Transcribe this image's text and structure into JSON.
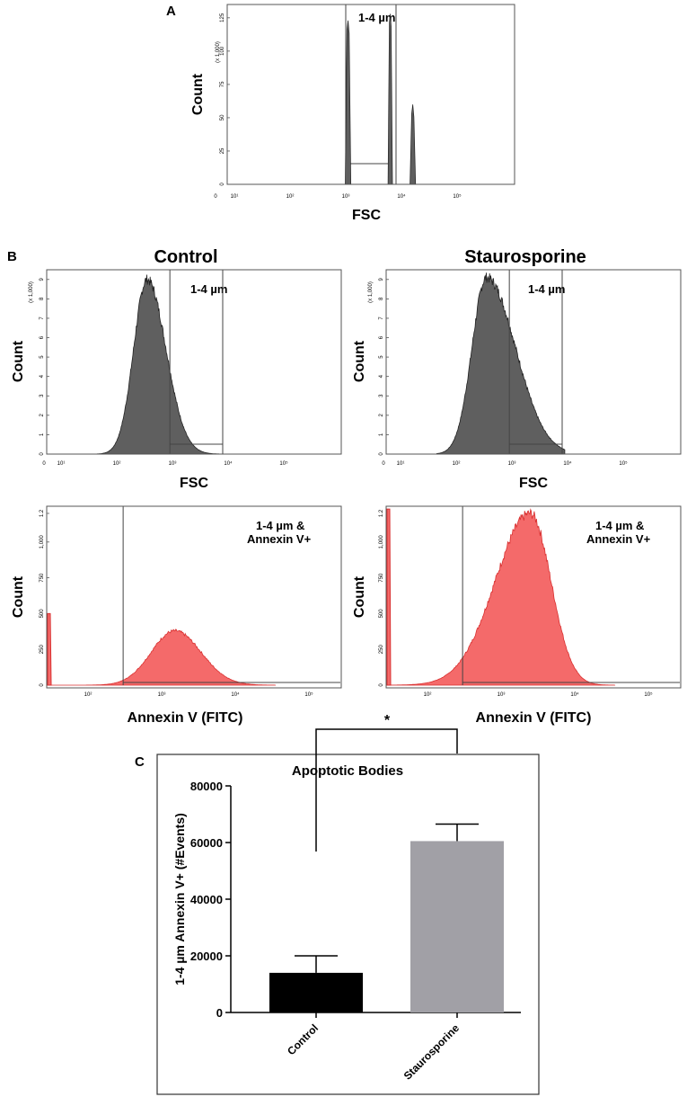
{
  "panel_labels": {
    "a": "A",
    "b": "B",
    "c": "C"
  },
  "column_titles": {
    "control": "Control",
    "staurosporine": "Staurosporine"
  },
  "colors": {
    "gray_fill": "#5f5f5f",
    "red_fill": "#f46a6a",
    "red_line": "#d93030",
    "bar_control": "#000000",
    "bar_stauro": "#a1a0a6"
  },
  "axes": {
    "count": "Count",
    "fsc": "FSC",
    "annexin": "Annexin V (FITC)"
  },
  "units": {
    "scale": "(x 1,000)"
  },
  "gates": {
    "size": "1-4 µm",
    "size_annexin_1": "1-4 µm &",
    "size_annexin_2": "Annexin V+"
  },
  "ticks": {
    "log_fsc": [
      "0",
      "10¹",
      "10²",
      "10³",
      "10⁴",
      "10⁵"
    ],
    "log_annexin": [
      "10²",
      "10³",
      "10⁴",
      "10⁵"
    ],
    "count_a": [
      "0",
      "25",
      "50",
      "75",
      "100",
      "125"
    ],
    "count_b_fsc": [
      "0",
      "1",
      "2",
      "3",
      "4",
      "5",
      "6",
      "7",
      "8",
      "9"
    ],
    "count_b_ann": [
      "0",
      "250",
      "500",
      "750",
      "1,000",
      "1.2"
    ]
  },
  "chart_data": [
    {
      "id": "A",
      "type": "area",
      "title": "",
      "xlabel": "FSC",
      "ylabel": "Count",
      "x_scale": "log",
      "ylim": [
        0,
        135
      ],
      "y_units": "x 1,000",
      "gates": [
        {
          "label": "1-4 µm",
          "from": 1000,
          "to": 8000
        }
      ],
      "peaks": [
        {
          "x": 1100,
          "height": 123,
          "width": 0.05
        },
        {
          "x": 6300,
          "height": 128,
          "width": 0.04
        },
        {
          "x": 16000,
          "height": 60,
          "width": 0.05
        }
      ]
    },
    {
      "id": "B-control-FSC",
      "type": "area",
      "title": "Control",
      "xlabel": "FSC",
      "ylabel": "Count",
      "x_scale": "log",
      "ylim": [
        0,
        9.5
      ],
      "y_units": "x 1,000",
      "gates": [
        {
          "label": "1-4 µm",
          "from": 900,
          "to": 8000
        }
      ],
      "distribution": {
        "peak_x": 350,
        "peak_height": 9.0,
        "sigma_left": 0.24,
        "sigma_right": 0.34
      }
    },
    {
      "id": "B-staurosporine-FSC",
      "type": "area",
      "title": "Staurosporine",
      "xlabel": "FSC",
      "ylabel": "Count",
      "x_scale": "log",
      "ylim": [
        0,
        9.5
      ],
      "y_units": "x 1,000",
      "gates": [
        {
          "label": "1-4 µm",
          "from": 900,
          "to": 8000
        }
      ],
      "distribution": {
        "peak_x": 350,
        "peak_height": 9.1,
        "sigma_left": 0.26,
        "sigma_right": 0.52
      }
    },
    {
      "id": "B-control-Annexin",
      "type": "area",
      "title": "",
      "xlabel": "Annexin V (FITC)",
      "ylabel": "Count",
      "x_scale": "log",
      "ylim": [
        0,
        1250
      ],
      "gates": [
        {
          "label": "1-4 µm & Annexin V+",
          "from": 300,
          "to": 300000
        }
      ],
      "distribution": {
        "peak_x": 1500,
        "peak_height": 380,
        "sigma_left": 0.32,
        "sigma_right": 0.36
      },
      "axis_spike": {
        "height": 500
      }
    },
    {
      "id": "B-staurosporine-Annexin",
      "type": "area",
      "title": "",
      "xlabel": "Annexin V (FITC)",
      "ylabel": "Count",
      "x_scale": "log",
      "ylim": [
        0,
        1250
      ],
      "gates": [
        {
          "label": "1-4 µm & Annexin V+",
          "from": 300,
          "to": 300000
        }
      ],
      "distribution": {
        "peak_x": 2500,
        "peak_height": 1200,
        "sigma_left": 0.48,
        "sigma_right": 0.28
      },
      "axis_spike": {
        "height": 1230
      }
    },
    {
      "id": "C",
      "type": "bar",
      "title": "Apoptotic Bodies",
      "xlabel": "",
      "ylabel": "1-4 µm Annexin V+ (#Events)",
      "categories": [
        "Control",
        "Staurosporine"
      ],
      "values": [
        14000,
        60500
      ],
      "errors": [
        6000,
        6000
      ],
      "ylim": [
        0,
        80000
      ],
      "yticks": [
        0,
        20000,
        40000,
        60000,
        80000
      ],
      "significance": "*"
    }
  ]
}
